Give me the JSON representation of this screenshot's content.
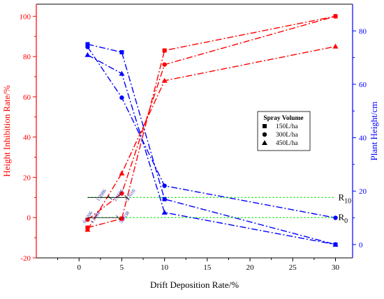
{
  "chart_data": {
    "type": "line",
    "xlabel": "Drift Deposition Rate/%",
    "ylabel_left": "Height Inhibition Rate/%",
    "ylabel_right": "Plant Height/cm",
    "xlim": [
      -5,
      32
    ],
    "ylim_left": [
      -20,
      106
    ],
    "ylim_right": [
      -5,
      90
    ],
    "x_ticks": [
      0,
      5,
      10,
      15,
      20,
      25,
      30
    ],
    "y_left_ticks": [
      -20,
      0,
      20,
      40,
      60,
      80,
      100
    ],
    "y_right_ticks": [
      0,
      20,
      40,
      60,
      80
    ],
    "colors": {
      "left_axis": "#ff0000",
      "right_axis": "#0000ff",
      "reference": "#00ee00"
    },
    "legend": {
      "title": "Spray Volume",
      "position": "center-right",
      "entries": [
        {
          "label": "150L/ha",
          "marker": "square"
        },
        {
          "label": "300L/ha",
          "marker": "circle"
        },
        {
          "label": "450L/ha",
          "marker": "triangle"
        }
      ]
    },
    "x": [
      1,
      5,
      10,
      30
    ],
    "inhibition_series": [
      {
        "marker": "square",
        "values": [
          -5,
          -0.5,
          83,
          100
        ]
      },
      {
        "marker": "circle",
        "values": [
          -1,
          12,
          76,
          100
        ]
      },
      {
        "marker": "triangle",
        "values": [
          -6,
          22,
          68,
          85
        ]
      }
    ],
    "height_series": [
      {
        "marker": "square",
        "values": [
          75,
          72,
          17,
          0
        ]
      },
      {
        "marker": "circle",
        "values": [
          74,
          55,
          22,
          10
        ]
      },
      {
        "marker": "triangle",
        "values": [
          71,
          64,
          12,
          0
        ]
      }
    ],
    "reference_lines": [
      {
        "label_base": "R",
        "label_sub": "10",
        "y_left": 10
      },
      {
        "label_base": "R",
        "label_sub": "0",
        "y_left": 0
      }
    ],
    "annotations": [
      {
        "text": "1.3986",
        "x": 2.3,
        "y_left": 8
      },
      {
        "text": "2.6606",
        "x": 4.3,
        "y_left": 8
      },
      {
        "text": "5.7016",
        "x": 5.7,
        "y_left": 8
      },
      {
        "text": "0.6206",
        "x": 0.7,
        "y_left": -3
      },
      {
        "text": "1.3986",
        "x": 1.6,
        "y_left": -3
      },
      {
        "text": "5.0038",
        "x": 5.0,
        "y_left": -3
      }
    ],
    "grid": false
  }
}
